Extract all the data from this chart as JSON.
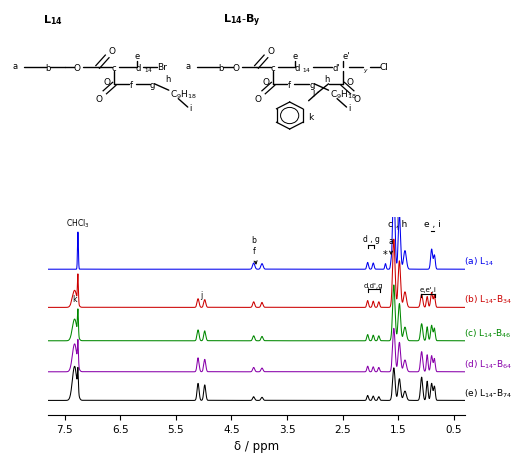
{
  "xlabel": "δ / ppm",
  "xlim": [
    7.8,
    0.3
  ],
  "xticks": [
    7.5,
    6.5,
    5.5,
    4.5,
    3.5,
    2.5,
    1.5,
    0.5
  ],
  "spectrum_colors": [
    "#0000EE",
    "#CC0000",
    "#008800",
    "#8800AA",
    "#000000"
  ],
  "spectrum_labels": [
    "(a) L$_{14}$",
    "(b) L$_{14}$-B$_{34}$",
    "(c) L$_{14}$-B$_{46}$",
    "(d) L$_{14}$-B$_{64}$",
    "(e) L$_{14}$-B$_{74}$"
  ],
  "label_colors": [
    "#0000EE",
    "#CC0000",
    "#008800",
    "#8800AA",
    "#000000"
  ],
  "offsets": [
    0.6,
    0.44,
    0.3,
    0.17,
    0.05
  ],
  "scale": 0.13,
  "background_color": "#ffffff"
}
